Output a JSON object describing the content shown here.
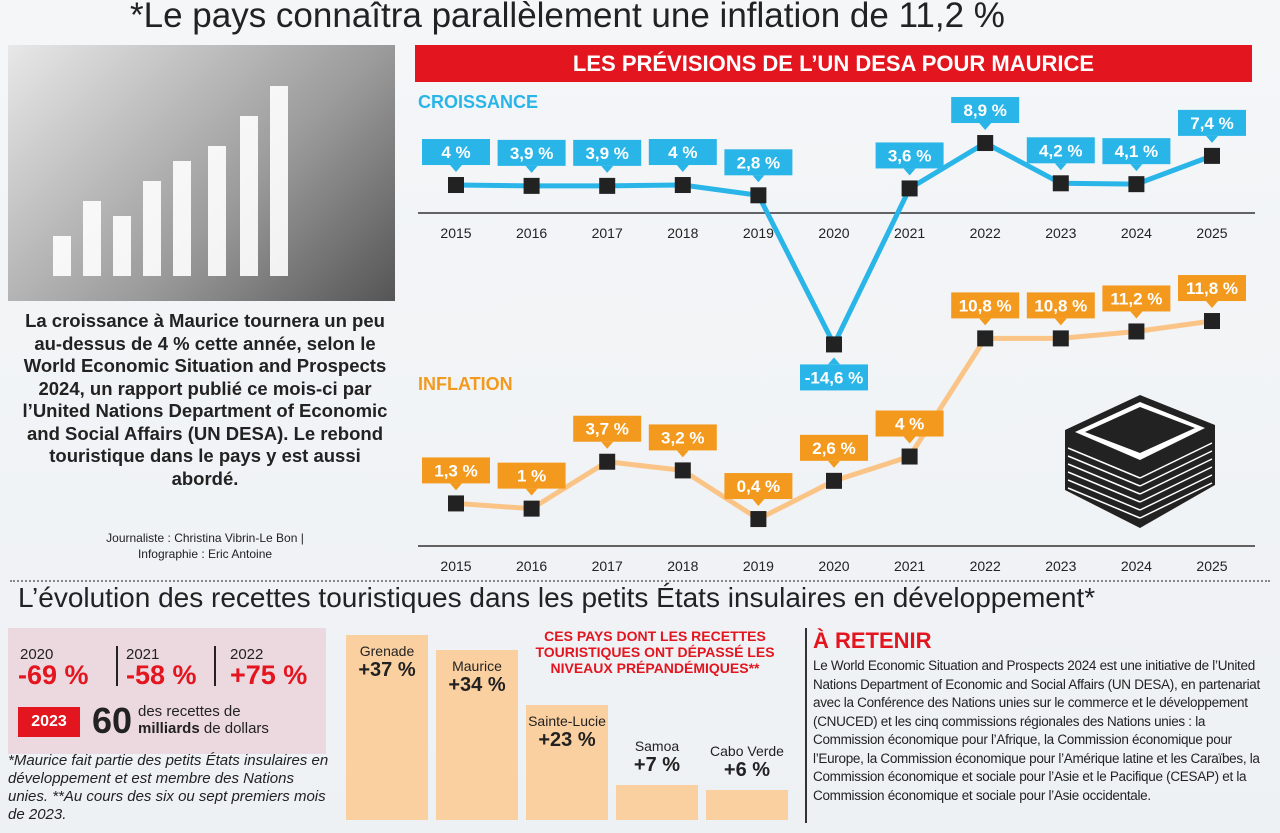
{
  "title": "*Le pays connaîtra parallèlement une inflation de 11,2 %",
  "banner": "LES PRÉVISIONS DE L’UN DESA POUR MAURICE",
  "caption": "La croissance à Maurice tournera un peu au-dessus de 4 % cette année, selon le World Economic Situation and Prospects 2024, un rapport publié ce mois-ci par l’United Nations Department of Economic and Social Affairs (UN DESA). Le rebond touristique dans le pays y est aussi abordé.",
  "credit_line1": "Journaliste : Christina Vibrin-Le Bon |",
  "credit_line2": "Infographie : Eric Antoine",
  "colors": {
    "croissance": "#29b5e8",
    "inflation": "#f39a1e",
    "inflation_line": "#fbc487",
    "accent": "#e3151f"
  },
  "chart_data": [
    {
      "type": "line",
      "title": "CROISSANCE",
      "x": [
        "2015",
        "2016",
        "2017",
        "2018",
        "2019",
        "2020",
        "2021",
        "2022",
        "2023",
        "2024",
        "2025"
      ],
      "values": [
        4,
        3.9,
        3.9,
        4,
        2.8,
        -14.6,
        3.6,
        8.9,
        4.2,
        4.1,
        7.4
      ],
      "labels": [
        "4 %",
        "3,9 %",
        "3,9 %",
        "4 %",
        "2,8 %",
        "-14,6 %",
        "3,6 %",
        "8,9 %",
        "4,2 %",
        "4,1 %",
        "7,4 %"
      ]
    },
    {
      "type": "line",
      "title": "INFLATION",
      "x": [
        "2015",
        "2016",
        "2017",
        "2018",
        "2019",
        "2020",
        "2021",
        "2022",
        "2023",
        "2024",
        "2025"
      ],
      "values": [
        1.3,
        1,
        3.7,
        3.2,
        0.4,
        2.6,
        4,
        10.8,
        10.8,
        11.2,
        11.8
      ],
      "labels": [
        "1,3 %",
        "1 %",
        "3,7 %",
        "3,2 %",
        "0,4 %",
        "2,6 %",
        "4 %",
        "10,8 %",
        "10,8 %",
        "11,2 %",
        "11,8 %"
      ]
    },
    {
      "type": "bar",
      "title": "CES PAYS DONT LES RECETTES TOURISTIQUES ONT DÉPASSÉ LES NIVEAUX PRÉPANDÉMIQUES**",
      "categories": [
        "Grenade",
        "Maurice",
        "Sainte-Lucie",
        "Samoa",
        "Cabo Verde"
      ],
      "values": [
        37,
        34,
        23,
        7,
        6
      ],
      "labels": [
        "+37 %",
        "+34 %",
        "+23 %",
        "+7 %",
        "+6 %"
      ]
    }
  ],
  "subtitle": "L’évolution des recettes touristiques dans les petits États insulaires en développement*",
  "stats": [
    {
      "year": "2020",
      "value": "-69 %"
    },
    {
      "year": "2021",
      "value": "-58 %"
    },
    {
      "year": "2022",
      "value": "+75 %"
    }
  ],
  "receipts": {
    "year": "2023",
    "amount": "60",
    "line1": "des recettes de",
    "line2_bold": "milliards",
    "line2": "de dollars"
  },
  "note": "*Maurice fait partie des petits États insulaires en développement et est membre des Nations unies. **Au cours des six ou sept premiers mois de 2023.",
  "retenir": {
    "title": "À RETENIR",
    "body": "Le World Economic Situation and Prospects 2024 est une initiative de l’United Nations Department of Economic and Social Affairs (UN DESA), en partenariat avec la Conférence des Nations unies sur le commerce et le développement (CNUCED) et les cinq commissions régionales des Nations unies : la Commission économique pour l’Afrique, la Commission économique pour l’Europe, la Commission économique pour l’Amérique latine et les Caraïbes, la Commission économique et sociale pour l’Asie et le Pacifique (CESAP) et la Commission économique et sociale pour l’Asie occidentale."
  }
}
